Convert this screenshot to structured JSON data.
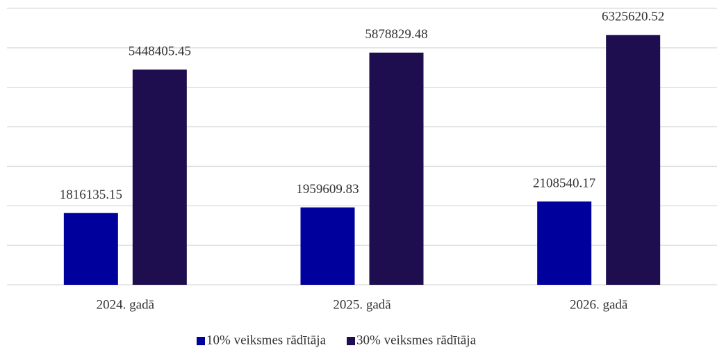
{
  "chart_data": {
    "type": "bar",
    "categories": [
      "2024. gadā",
      "2025. gadā",
      "2026. gadā"
    ],
    "series": [
      {
        "name": "10% veiksmes rādītāja",
        "color": "#00009c",
        "values": [
          1816135.15,
          1959609.83,
          2108540.17
        ]
      },
      {
        "name": "30% veiksmes rādītāja",
        "color": "#1e0e4f",
        "values": [
          5448405.45,
          5878829.48,
          6325620.52
        ]
      }
    ],
    "ylim": [
      0,
      7000000
    ],
    "yticks": [
      0,
      1000000,
      2000000,
      3000000,
      4000000,
      5000000,
      6000000,
      7000000
    ],
    "grid": true,
    "legend": "bottom"
  }
}
